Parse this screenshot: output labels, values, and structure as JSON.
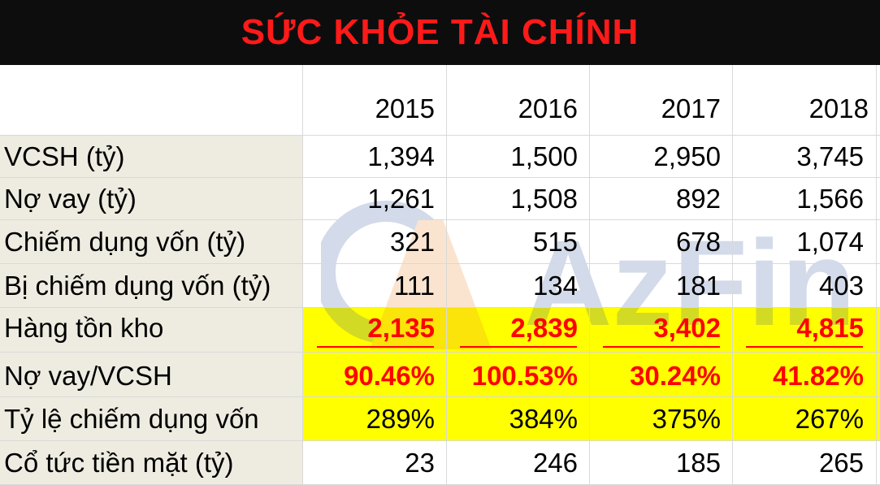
{
  "title": "SỨC KHỎE TÀI CHÍNH",
  "years": [
    "2015",
    "2016",
    "2017",
    "2018"
  ],
  "rows": [
    {
      "label": "VCSH (tỷ)",
      "values": [
        "1,394",
        "1,500",
        "2,950",
        "3,745"
      ]
    },
    {
      "label": "Nợ vay (tỷ)",
      "values": [
        "1,261",
        "1,508",
        "892",
        "1,566"
      ]
    },
    {
      "label": "Chiếm dụng vốn (tỷ)",
      "values": [
        "321",
        "515",
        "678",
        "1,074"
      ]
    },
    {
      "label": "Bị chiếm dụng vốn (tỷ)",
      "values": [
        "111",
        "134",
        "181",
        "403"
      ]
    },
    {
      "label": "Hàng tồn kho",
      "values": [
        "2,135",
        "2,839",
        "3,402",
        "4,815"
      ]
    },
    {
      "label": "Nợ vay/VCSH",
      "values": [
        "90.46%",
        "100.53%",
        "30.24%",
        "41.82%"
      ]
    },
    {
      "label": "Tỷ lệ chiếm dụng vốn",
      "values": [
        "289%",
        "384%",
        "375%",
        "267%"
      ]
    },
    {
      "label": "Cổ tức tiền mặt (tỷ)",
      "values": [
        "23",
        "246",
        "185",
        "265"
      ]
    }
  ],
  "watermark": {
    "text": "AzFin",
    "icon": "azfin-logo-icon"
  },
  "colors": {
    "title_bg": "#0d0d0d",
    "title_text": "#ff1a1a",
    "label_bg": "#eeece1",
    "highlight": "#ffff00",
    "emphasis_text": "#ff0000"
  }
}
